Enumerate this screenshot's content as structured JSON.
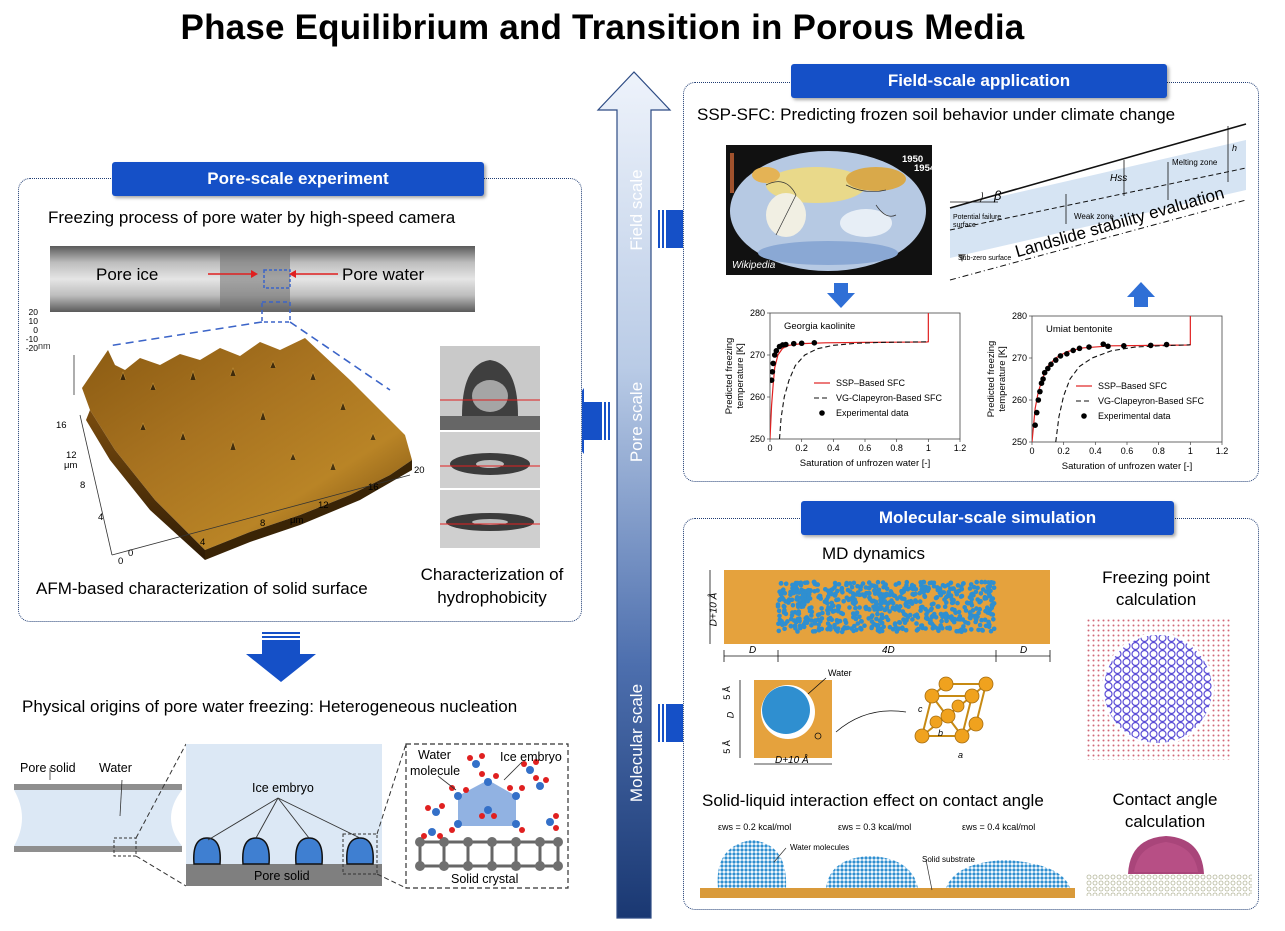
{
  "title": "Phase Equilibrium and Transition in Porous Media",
  "colors": {
    "accent": "#1550c7",
    "dark_blue": "#1f3c73",
    "ice": "#dce8f5",
    "arrow_light": "#e9eff8"
  },
  "scale_arrow": {
    "field": "Field scale",
    "pore": "Pore scale",
    "molecular": "Molecular scale"
  },
  "pore_panel": {
    "header": "Pore-scale experiment",
    "subtitle": "Freezing process of pore water by high-speed camera",
    "pore_ice": "Pore ice",
    "pore_water": "Pore water",
    "afm_caption": "AFM-based characterization of solid surface",
    "hydro_caption_1": "Characterization of",
    "hydro_caption_2": "hydrophobicity",
    "afm_axis": {
      "nm": "nm",
      "z_ticks": [
        "20",
        "10",
        "0",
        "-10",
        "-20"
      ],
      "um": "μm",
      "x_ticks": [
        "0",
        "4",
        "8",
        "12",
        "16",
        "20"
      ],
      "y_ticks": [
        "0",
        "4",
        "8",
        "12",
        "16"
      ]
    }
  },
  "nucleation": {
    "title": "Physical origins of pore water freezing: Heterogeneous nucleation",
    "pore_solid": "Pore solid",
    "water": "Water",
    "ice_embryo": "Ice embryo",
    "pore_solid_2": "Pore solid",
    "water_molecule_1": "Water",
    "water_molecule_2": "molecule",
    "ice_embryo_2": "Ice embryo",
    "solid_crystal": "Solid crystal"
  },
  "field_panel": {
    "header": "Field-scale application",
    "subtitle": "SSP-SFC: Predicting frozen soil behavior under climate change",
    "map_years": [
      "1950",
      "1954"
    ],
    "map_credit": "Wikipedia",
    "landslide": "Landslide stability evaluation",
    "slope_labels": {
      "beta": "β",
      "melting": "Melting zone",
      "hss": "Hss",
      "h": "h",
      "weak": "Weak zone",
      "failure_1": "Potential failure",
      "failure_2": "surface",
      "subzero": "Sub-zero surface"
    }
  },
  "charts_common": {
    "xlabel": "Saturation of unfrozen water [-]",
    "ylabel_1": "Predicted freezing",
    "ylabel_2": "temperature [K]",
    "legend": [
      "SSP–Based SFC",
      "VG-Clapeyron-Based SFC",
      "Experimental data"
    ]
  },
  "chart_data": [
    {
      "type": "scatter",
      "title": "Georgia kaolinite",
      "xlabel": "Saturation of unfrozen water [-]",
      "ylabel": "Predicted freezing temperature [K]",
      "xlim": [
        0,
        1.2
      ],
      "ylim": [
        250,
        280
      ],
      "x_ticks": [
        "0",
        "0.2",
        "0.4",
        "0.6",
        "0.8",
        "1",
        "1.2"
      ],
      "y_ticks": [
        "250",
        "260",
        "270",
        "280"
      ],
      "series": [
        {
          "name": "SSP–Based SFC",
          "x": [
            0.0,
            0.01,
            0.02,
            0.03,
            0.05,
            0.08,
            0.12,
            0.2,
            0.35,
            0.6,
            0.8,
            0.99,
            1.0,
            1.0
          ],
          "y": [
            250,
            258,
            263,
            267,
            270,
            271.6,
            272.3,
            272.7,
            272.9,
            273.0,
            273.05,
            273.1,
            273.15,
            280
          ]
        },
        {
          "name": "VG-Clapeyron-Based SFC",
          "x": [
            0.06,
            0.07,
            0.09,
            0.12,
            0.16,
            0.22,
            0.3,
            0.4,
            0.55,
            0.7,
            0.9,
            1.0
          ],
          "y": [
            250,
            255,
            260,
            264,
            267.5,
            270,
            271.5,
            272.3,
            272.8,
            273.0,
            273.1,
            273.15
          ]
        },
        {
          "name": "Experimental data",
          "x": [
            0.01,
            0.015,
            0.02,
            0.03,
            0.04,
            0.06,
            0.08,
            0.1,
            0.15,
            0.2,
            0.28
          ],
          "y": [
            264,
            266,
            268,
            270,
            271,
            272,
            272.4,
            272.5,
            272.7,
            272.8,
            272.9
          ]
        }
      ]
    },
    {
      "type": "scatter",
      "title": "Umiat bentonite",
      "xlabel": "Saturation of unfrozen water [-]",
      "ylabel": "Predicted freezing temperature [K]",
      "xlim": [
        0,
        1.2
      ],
      "ylim": [
        250,
        280
      ],
      "x_ticks": [
        "0",
        "0.2",
        "0.4",
        "0.6",
        "0.8",
        "1",
        "1.2"
      ],
      "y_ticks": [
        "250",
        "260",
        "270",
        "280"
      ],
      "series": [
        {
          "name": "SSP–Based SFC",
          "x": [
            0.0,
            0.01,
            0.02,
            0.04,
            0.07,
            0.1,
            0.15,
            0.22,
            0.32,
            0.5,
            0.75,
            0.99,
            1.0,
            1.0
          ],
          "y": [
            250,
            254,
            258,
            262,
            265.5,
            268,
            270,
            271.5,
            272.4,
            272.9,
            273.0,
            273.1,
            273.15,
            280
          ]
        },
        {
          "name": "VG-Clapeyron-Based SFC",
          "x": [
            0.15,
            0.17,
            0.2,
            0.24,
            0.3,
            0.38,
            0.5,
            0.65,
            0.8,
            1.0
          ],
          "y": [
            250,
            256,
            261,
            265,
            268,
            270,
            271.7,
            272.6,
            272.9,
            273.15
          ]
        },
        {
          "name": "Experimental data",
          "x": [
            0.02,
            0.03,
            0.04,
            0.05,
            0.06,
            0.07,
            0.08,
            0.1,
            0.12,
            0.15,
            0.18,
            0.22,
            0.26,
            0.3,
            0.36,
            0.45,
            0.48,
            0.58,
            0.75,
            0.85
          ],
          "y": [
            254,
            257,
            260,
            262,
            264,
            265,
            266.5,
            267.5,
            268.5,
            269.5,
            270.5,
            271,
            271.8,
            272.3,
            272.6,
            273.3,
            272.8,
            272.9,
            273.0,
            273.2
          ]
        }
      ]
    }
  ],
  "molecular_panel": {
    "header": "Molecular-scale simulation",
    "md": "MD dynamics",
    "freezing_1": "Freezing point",
    "freezing_2": "calculation",
    "dim_dA": "D+10 Å",
    "dim_d1": "D",
    "dim_4d": "4D",
    "dim_d2": "D",
    "water_label": "Water",
    "dim_5a_1": "5 Å",
    "dim_d3": "D",
    "dim_5a_2": "5 Å",
    "dim_dA2": "D+10 Å",
    "lat_a": "a",
    "lat_b": "b",
    "lat_c": "c",
    "solid_liquid": "Solid-liquid interaction effect on contact angle",
    "contact_1": "Contact angle",
    "contact_2": "calculation",
    "eps1": "εws = 0.2 kcal/mol",
    "eps2": "εws = 0.3 kcal/mol",
    "eps3": "εws = 0.4 kcal/mol",
    "water_molecules": "Water molecules",
    "solid_substrate": "Solid substrate"
  }
}
